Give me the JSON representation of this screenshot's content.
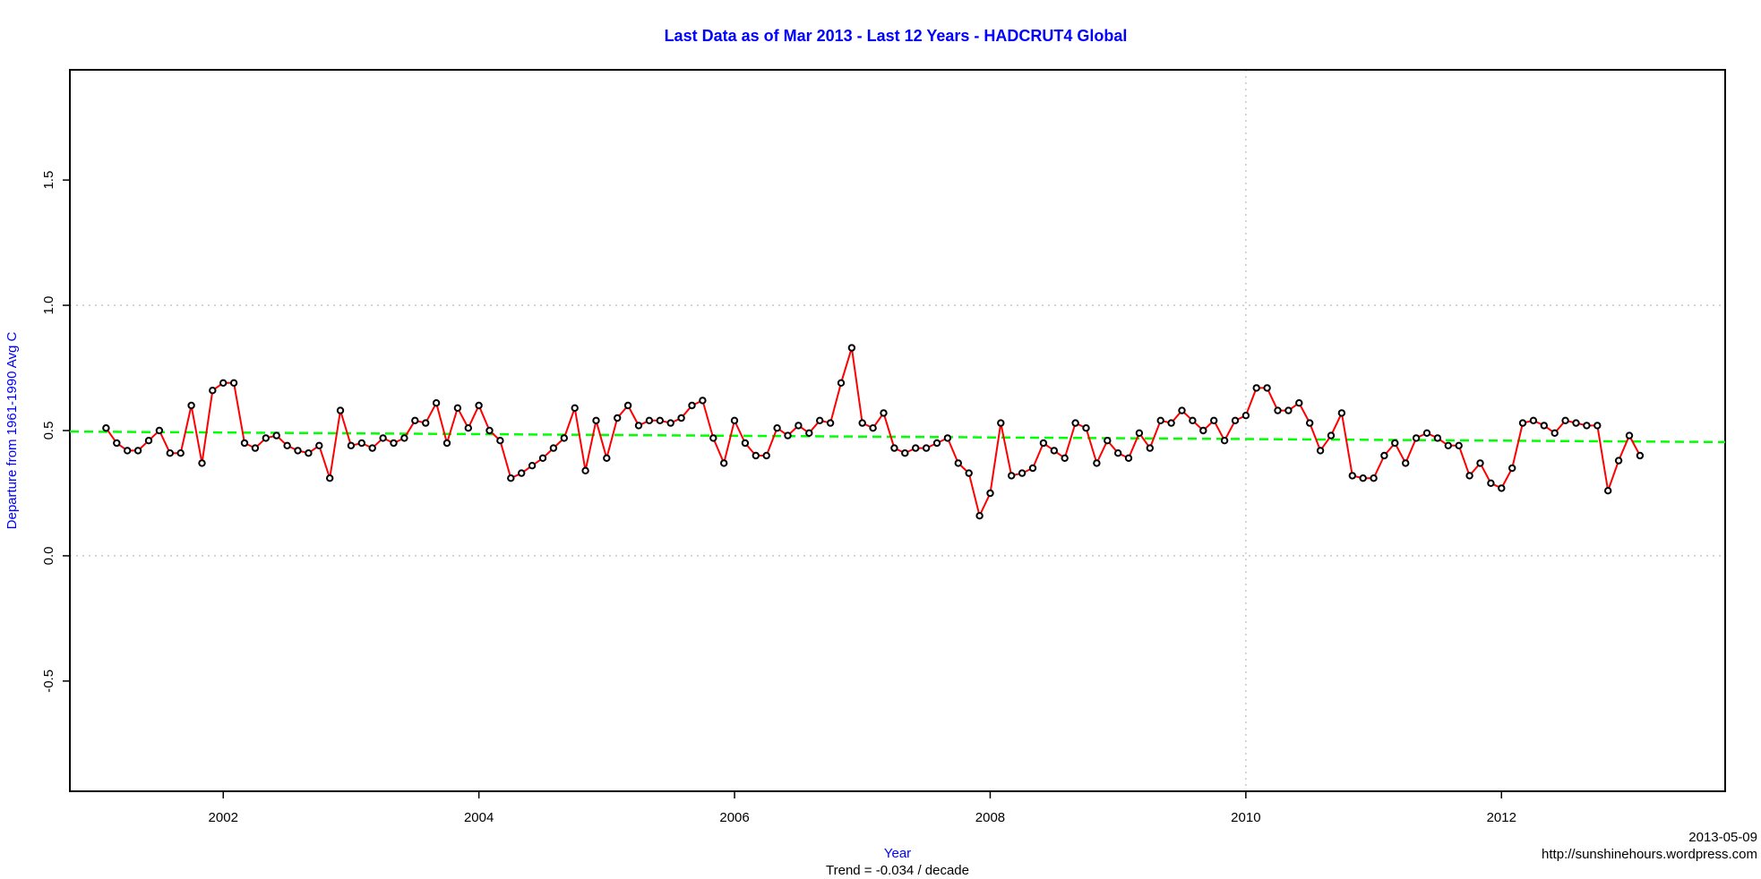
{
  "chart_data": {
    "type": "line",
    "title": "Last Data as of Mar 2013 - Last 12 Years - HADCRUT4 Global",
    "xlabel": "Year",
    "ylabel": "Departure from 1961-1990 Avg C",
    "xlim": [
      2000.8,
      2013.75
    ],
    "ylim": [
      -0.94,
      1.94
    ],
    "x_ticks": [
      2002,
      2004,
      2006,
      2008,
      2010,
      2012
    ],
    "y_ticks": [
      -0.5,
      0.0,
      0.5,
      1.0,
      1.5
    ],
    "x_tick_labels": [
      "2002",
      "2004",
      "2006",
      "2008",
      "2010",
      "2012"
    ],
    "y_tick_labels": [
      "-0.5",
      "0.0",
      "0.5",
      "1.0",
      "1.5"
    ],
    "grid": {
      "horizontal": [
        0.0,
        1.0
      ],
      "vertical": [
        2010
      ]
    },
    "x_start": 2001.0833,
    "x_step": 0.083333,
    "series": [
      {
        "values": [
          0.51,
          0.45,
          0.42,
          0.42,
          0.46,
          0.5,
          0.41,
          0.41,
          0.6,
          0.37,
          0.66,
          0.69,
          0.69,
          0.45,
          0.43,
          0.47,
          0.48,
          0.44,
          0.42,
          0.41,
          0.44,
          0.31,
          0.58,
          0.44,
          0.45,
          0.43,
          0.47,
          0.45,
          0.47,
          0.54,
          0.53,
          0.61,
          0.45,
          0.59,
          0.51,
          0.6,
          0.5,
          0.46,
          0.31,
          0.33,
          0.36,
          0.39,
          0.43,
          0.47,
          0.59,
          0.34,
          0.54,
          0.39,
          0.55,
          0.6,
          0.52,
          0.54,
          0.54,
          0.53,
          0.55,
          0.6,
          0.62,
          0.47,
          0.37,
          0.54,
          0.45,
          0.4,
          0.4,
          0.51,
          0.48,
          0.52,
          0.49,
          0.54,
          0.53,
          0.69,
          0.83,
          0.53,
          0.51,
          0.57,
          0.43,
          0.41,
          0.43,
          0.43,
          0.45,
          0.47,
          0.37,
          0.33,
          0.16,
          0.25,
          0.53,
          0.32,
          0.33,
          0.35,
          0.45,
          0.42,
          0.39,
          0.53,
          0.51,
          0.37,
          0.46,
          0.41,
          0.39,
          0.49,
          0.43,
          0.54,
          0.53,
          0.58,
          0.54,
          0.5,
          0.54,
          0.46,
          0.54,
          0.56,
          0.67,
          0.67,
          0.58,
          0.58,
          0.61,
          0.53,
          0.42,
          0.48,
          0.57,
          0.32,
          0.31,
          0.31,
          0.4,
          0.45,
          0.37,
          0.47,
          0.49,
          0.47,
          0.44,
          0.44,
          0.32,
          0.37,
          0.29,
          0.27,
          0.35,
          0.53,
          0.54,
          0.52,
          0.49,
          0.54,
          0.53,
          0.52,
          0.52,
          0.26,
          0.38,
          0.48,
          0.4
        ],
        "color": "#ff0000",
        "marker_color": "#000000"
      }
    ],
    "trend": {
      "x0": 2000.8,
      "y0": 0.496,
      "x1": 2013.75,
      "y1": 0.454,
      "color": "#00ff00",
      "style": "dashed"
    }
  },
  "annotations": {
    "date": "2013-05-09",
    "url": "http://sunshinehours.wordpress.com",
    "trend_text": "Trend = -0.034 / decade"
  },
  "colors": {
    "title": "#0000ff",
    "axis_label": "#0000ff",
    "grid": "#c8c8c8",
    "frame": "#000000"
  }
}
